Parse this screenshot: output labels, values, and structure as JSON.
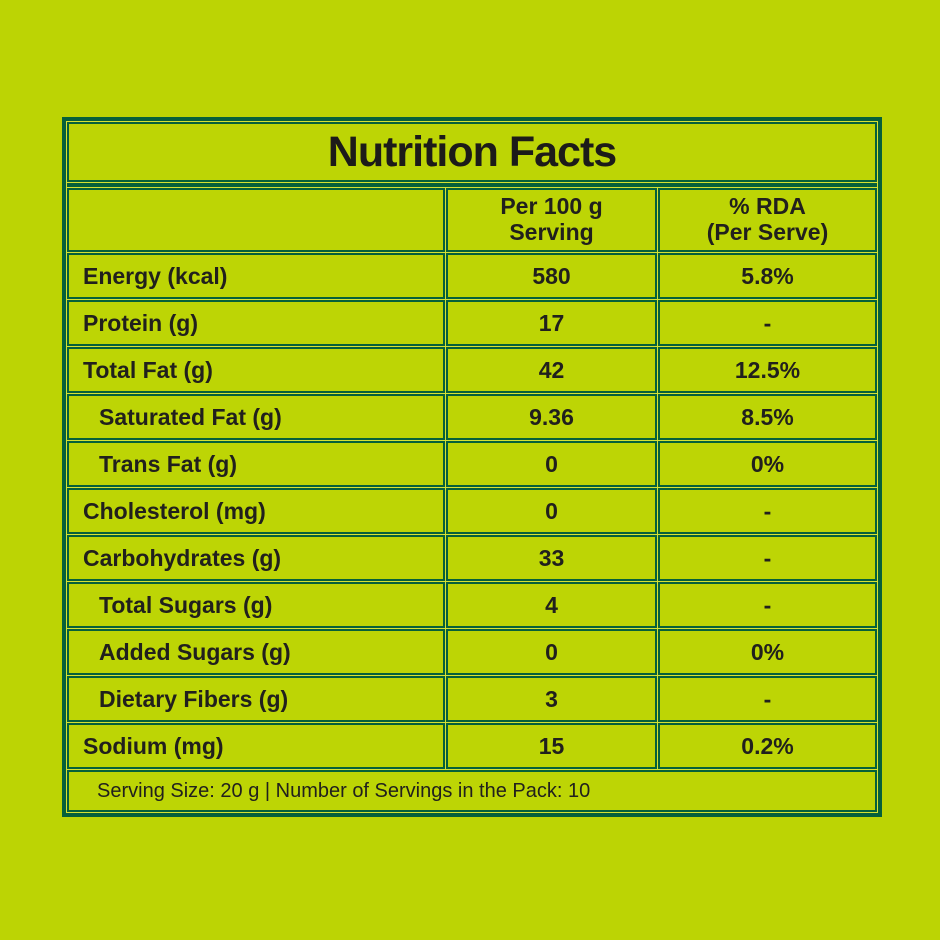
{
  "colors": {
    "page_bg": "#bcd404",
    "cell_bg": "#bdd505",
    "border": "#06603a",
    "gap_highlight": "#d6e232",
    "text": "#21201d"
  },
  "title": "Nutrition Facts",
  "header": {
    "item_col": "",
    "per_serving": {
      "line1": "Per 100 g",
      "line2": "Serving"
    },
    "rda": {
      "line1": "% RDA",
      "line2": "(Per Serve)"
    }
  },
  "rows": [
    {
      "label": "Energy (kcal)",
      "per100": "580",
      "rda": "5.8%",
      "indent": false
    },
    {
      "label": "Protein (g)",
      "per100": "17",
      "rda": "-",
      "indent": false
    },
    {
      "label": "Total Fat (g)",
      "per100": "42",
      "rda": "12.5%",
      "indent": false
    },
    {
      "label": "Saturated Fat (g)",
      "per100": "9.36",
      "rda": "8.5%",
      "indent": true
    },
    {
      "label": "Trans Fat (g)",
      "per100": "0",
      "rda": "0%",
      "indent": true
    },
    {
      "label": "Cholesterol (mg)",
      "per100": "0",
      "rda": "-",
      "indent": false
    },
    {
      "label": "Carbohydrates (g)",
      "per100": "33",
      "rda": "-",
      "indent": false
    },
    {
      "label": "Total Sugars (g)",
      "per100": "4",
      "rda": "-",
      "indent": true
    },
    {
      "label": "Added Sugars (g)",
      "per100": "0",
      "rda": "0%",
      "indent": true
    },
    {
      "label": "Dietary Fibers (g)",
      "per100": "3",
      "rda": "-",
      "indent": true
    },
    {
      "label": "Sodium (mg)",
      "per100": "15",
      "rda": "0.2%",
      "indent": false
    }
  ],
  "footer": "Serving Size: 20 g | Number of Servings in the Pack: 10"
}
